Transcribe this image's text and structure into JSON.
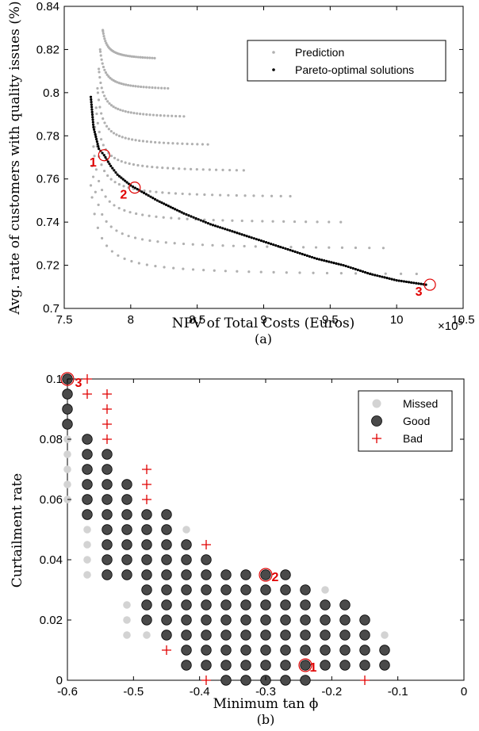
{
  "chart_data": [
    {
      "type": "scatter",
      "xlabel": "NPV of Total Costs (Euros)",
      "ylabel": "Avg. rate of customers with quality issues (%)",
      "caption": "(a)",
      "x_exponent_base": "×10",
      "x_exponent_power": "5",
      "xlim": [
        7.5,
        10.5
      ],
      "ylim": [
        0.7,
        0.84
      ],
      "xticks": [
        "7.5",
        "8",
        "8.5",
        "9",
        "9.5",
        "10",
        "10.5"
      ],
      "yticks": [
        "0.7",
        "0.72",
        "0.74",
        "0.76",
        "0.78",
        "0.8",
        "0.82",
        "0.84"
      ],
      "legend_position": "top-right",
      "colors": {
        "prediction": "#b0b0b0",
        "pareto": "#000000",
        "highlight": "#e00000"
      },
      "series": [
        {
          "name": "Prediction",
          "curves": [
            {
              "x0": 7.79,
              "y0": 0.829,
              "x1": 8.18,
              "y1": 0.816,
              "a": 0.034
            },
            {
              "x0": 7.77,
              "y0": 0.82,
              "x1": 8.28,
              "y1": 0.802,
              "a": 0.034
            },
            {
              "x0": 7.76,
              "y0": 0.811,
              "x1": 8.4,
              "y1": 0.789,
              "a": 0.036
            },
            {
              "x0": 7.75,
              "y0": 0.802,
              "x1": 8.58,
              "y1": 0.776,
              "a": 0.038
            },
            {
              "x0": 7.74,
              "y0": 0.793,
              "x1": 8.85,
              "y1": 0.764,
              "a": 0.04
            },
            {
              "x0": 7.73,
              "y0": 0.784,
              "x1": 9.2,
              "y1": 0.752,
              "a": 0.045
            },
            {
              "x0": 7.72,
              "y0": 0.775,
              "x1": 9.58,
              "y1": 0.74,
              "a": 0.05
            },
            {
              "x0": 7.71,
              "y0": 0.766,
              "x1": 9.9,
              "y1": 0.728,
              "a": 0.055
            },
            {
              "x0": 7.7,
              "y0": 0.757,
              "x1": 10.15,
              "y1": 0.716,
              "a": 0.06
            }
          ]
        },
        {
          "name": "Pareto-optimal solutions",
          "points": [
            [
              7.7,
              0.798
            ],
            [
              7.72,
              0.784
            ],
            [
              7.76,
              0.774
            ],
            [
              7.8,
              0.771
            ],
            [
              7.85,
              0.766
            ],
            [
              7.9,
              0.762
            ],
            [
              8.0,
              0.757
            ],
            [
              8.2,
              0.75
            ],
            [
              8.4,
              0.744
            ],
            [
              8.6,
              0.739
            ],
            [
              8.8,
              0.735
            ],
            [
              9.0,
              0.731
            ],
            [
              9.2,
              0.727
            ],
            [
              9.4,
              0.723
            ],
            [
              9.6,
              0.72
            ],
            [
              9.8,
              0.716
            ],
            [
              10.0,
              0.713
            ],
            [
              10.22,
              0.711
            ]
          ]
        }
      ],
      "annotations": [
        {
          "label": "1",
          "x": 7.8,
          "y": 0.771
        },
        {
          "label": "2",
          "x": 8.03,
          "y": 0.756
        },
        {
          "label": "3",
          "x": 10.25,
          "y": 0.711
        }
      ]
    },
    {
      "type": "scatter",
      "xlabel": "Minimum tan ϕ",
      "ylabel": "Curtailment rate",
      "caption": "(b)",
      "xlim": [
        -0.6,
        0
      ],
      "ylim": [
        0,
        0.1
      ],
      "xticks": [
        "-0.6",
        "-0.5",
        "-0.4",
        "-0.3",
        "-0.2",
        "-0.1",
        "0"
      ],
      "yticks": [
        "0",
        "0.02",
        "0.04",
        "0.06",
        "0.08",
        "0.1"
      ],
      "legend_position": "top-right",
      "colors": {
        "missed": "#d3d3d3",
        "good": "#4a4a4a",
        "bad": "#e00000",
        "highlight": "#e00000"
      },
      "series": [
        {
          "name": "Missed",
          "points": [
            [
              -0.6,
              0.06
            ],
            [
              -0.6,
              0.065
            ],
            [
              -0.6,
              0.07
            ],
            [
              -0.6,
              0.075
            ],
            [
              -0.6,
              0.08
            ],
            [
              -0.57,
              0.035
            ],
            [
              -0.57,
              0.04
            ],
            [
              -0.57,
              0.045
            ],
            [
              -0.57,
              0.05
            ],
            [
              -0.57,
              0.055
            ],
            [
              -0.51,
              0.015
            ],
            [
              -0.51,
              0.02
            ],
            [
              -0.51,
              0.025
            ],
            [
              -0.48,
              0.015
            ],
            [
              -0.42,
              0.05
            ],
            [
              -0.21,
              0.03
            ],
            [
              -0.12,
              0.015
            ]
          ]
        },
        {
          "name": "Good",
          "rows": [
            {
              "y": 0.1,
              "x_from": -0.6,
              "x_to": -0.6
            },
            {
              "y": 0.095,
              "x_from": -0.6,
              "x_to": -0.6
            },
            {
              "y": 0.09,
              "x_from": -0.6,
              "x_to": -0.6
            },
            {
              "y": 0.085,
              "x_from": -0.6,
              "x_to": -0.6
            },
            {
              "y": 0.08,
              "x_from": -0.57,
              "x_to": -0.57
            },
            {
              "y": 0.075,
              "x_from": -0.57,
              "x_to": -0.54
            },
            {
              "y": 0.07,
              "x_from": -0.57,
              "x_to": -0.54
            },
            {
              "y": 0.065,
              "x_from": -0.57,
              "x_to": -0.51
            },
            {
              "y": 0.06,
              "x_from": -0.57,
              "x_to": -0.51
            },
            {
              "y": 0.055,
              "x_from": -0.57,
              "x_to": -0.45
            },
            {
              "y": 0.05,
              "x_from": -0.54,
              "x_to": -0.45
            },
            {
              "y": 0.045,
              "x_from": -0.54,
              "x_to": -0.42
            },
            {
              "y": 0.04,
              "x_from": -0.54,
              "x_to": -0.39
            },
            {
              "y": 0.035,
              "x_from": -0.54,
              "x_to": -0.27
            },
            {
              "y": 0.03,
              "x_from": -0.48,
              "x_to": -0.24
            },
            {
              "y": 0.025,
              "x_from": -0.48,
              "x_to": -0.18
            },
            {
              "y": 0.02,
              "x_from": -0.48,
              "x_to": -0.15
            },
            {
              "y": 0.015,
              "x_from": -0.45,
              "x_to": -0.15
            },
            {
              "y": 0.01,
              "x_from": -0.42,
              "x_to": -0.12
            },
            {
              "y": 0.005,
              "x_from": -0.42,
              "x_to": -0.12
            },
            {
              "y": 0.0,
              "x_from": -0.36,
              "x_to": -0.24
            }
          ]
        },
        {
          "name": "Bad",
          "points": [
            [
              -0.57,
              0.1
            ],
            [
              -0.57,
              0.095
            ],
            [
              -0.54,
              0.095
            ],
            [
              -0.54,
              0.09
            ],
            [
              -0.54,
              0.085
            ],
            [
              -0.54,
              0.08
            ],
            [
              -0.48,
              0.07
            ],
            [
              -0.48,
              0.065
            ],
            [
              -0.48,
              0.06
            ],
            [
              -0.39,
              0.045
            ],
            [
              -0.45,
              0.01
            ],
            [
              -0.39,
              0.0
            ],
            [
              -0.15,
              0.0
            ]
          ]
        }
      ],
      "annotations": [
        {
          "label": "1",
          "x": -0.24,
          "y": 0.005
        },
        {
          "label": "2",
          "x": -0.3,
          "y": 0.035
        },
        {
          "label": "3",
          "x": -0.6,
          "y": 0.1
        }
      ]
    }
  ]
}
